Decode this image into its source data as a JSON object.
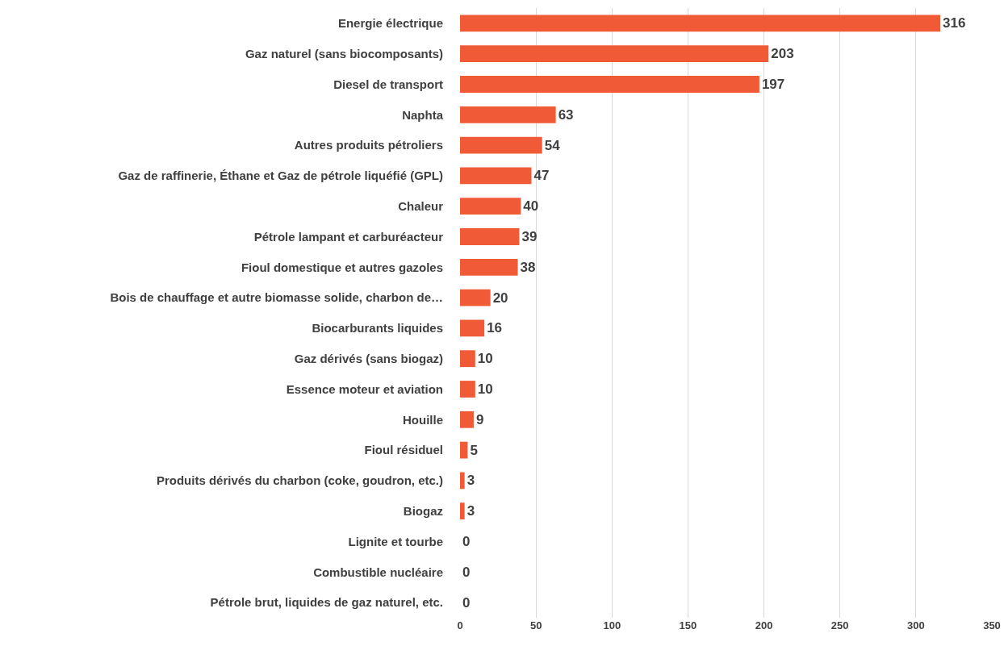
{
  "chart_data": {
    "type": "bar",
    "orientation": "horizontal",
    "categories": [
      "Energie électrique",
      "Gaz naturel (sans biocomposants)",
      "Diesel de transport",
      "Naphta",
      "Autres produits pétroliers",
      "Gaz de raffinerie, Éthane et Gaz de pétrole liquéfié (GPL)",
      "Chaleur",
      "Pétrole lampant et carburéacteur",
      "Fioul domestique et autres gazoles",
      "Bois de chauffage et autre biomasse solide, charbon de…",
      "Biocarburants liquides",
      "Gaz dérivés (sans biogaz)",
      "Essence moteur et aviation",
      "Houille",
      "Fioul résiduel",
      "Produits dérivés du charbon (coke, goudron, etc.)",
      "Biogaz",
      "Lignite et tourbe",
      "Combustible nucléaire",
      "Pétrole brut, liquides de gaz naturel, etc."
    ],
    "values": [
      316,
      203,
      197,
      63,
      54,
      47,
      40,
      39,
      38,
      20,
      16,
      10,
      10,
      9,
      5,
      3,
      3,
      0,
      0,
      0
    ],
    "color": "#f15a36",
    "xlim": [
      0,
      350
    ],
    "xticks": [
      0,
      50,
      100,
      150,
      200,
      250,
      300,
      350
    ],
    "grid": "x",
    "data_labels": true
  }
}
